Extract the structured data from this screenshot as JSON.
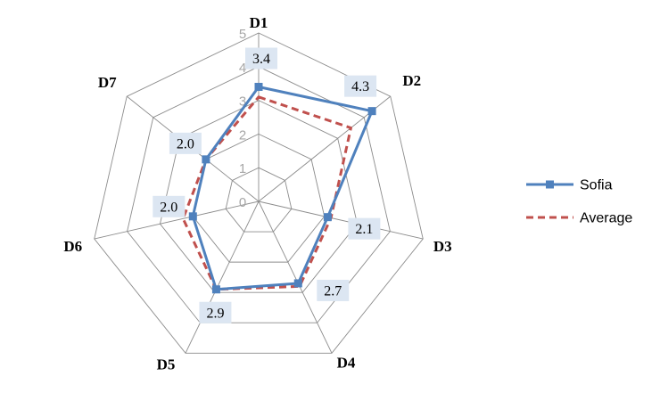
{
  "chart_data": {
    "type": "radar",
    "categories": [
      "D1",
      "D2",
      "D3",
      "D4",
      "D5",
      "D6",
      "D7"
    ],
    "rmin": 0,
    "rmax": 5,
    "ticks": [
      "0",
      "1",
      "2",
      "3",
      "4",
      "5"
    ],
    "grid": true,
    "legend_position": "right",
    "series": [
      {
        "name": "Sofia",
        "values": [
          3.4,
          4.3,
          2.1,
          2.7,
          2.9,
          2.0,
          2.0
        ],
        "labels": [
          "3.4",
          "4.3",
          "2.1",
          "2.7",
          "2.9",
          "2.0",
          "2.0"
        ],
        "color": "#4f81bd",
        "style": "solid",
        "marker": "square"
      },
      {
        "name": "Average",
        "values": [
          3.1,
          3.5,
          2.2,
          2.8,
          2.9,
          2.3,
          2.0
        ],
        "color": "#c0504d",
        "style": "dashed",
        "marker": "none"
      }
    ],
    "data_label_bg": "#dce6f2"
  }
}
